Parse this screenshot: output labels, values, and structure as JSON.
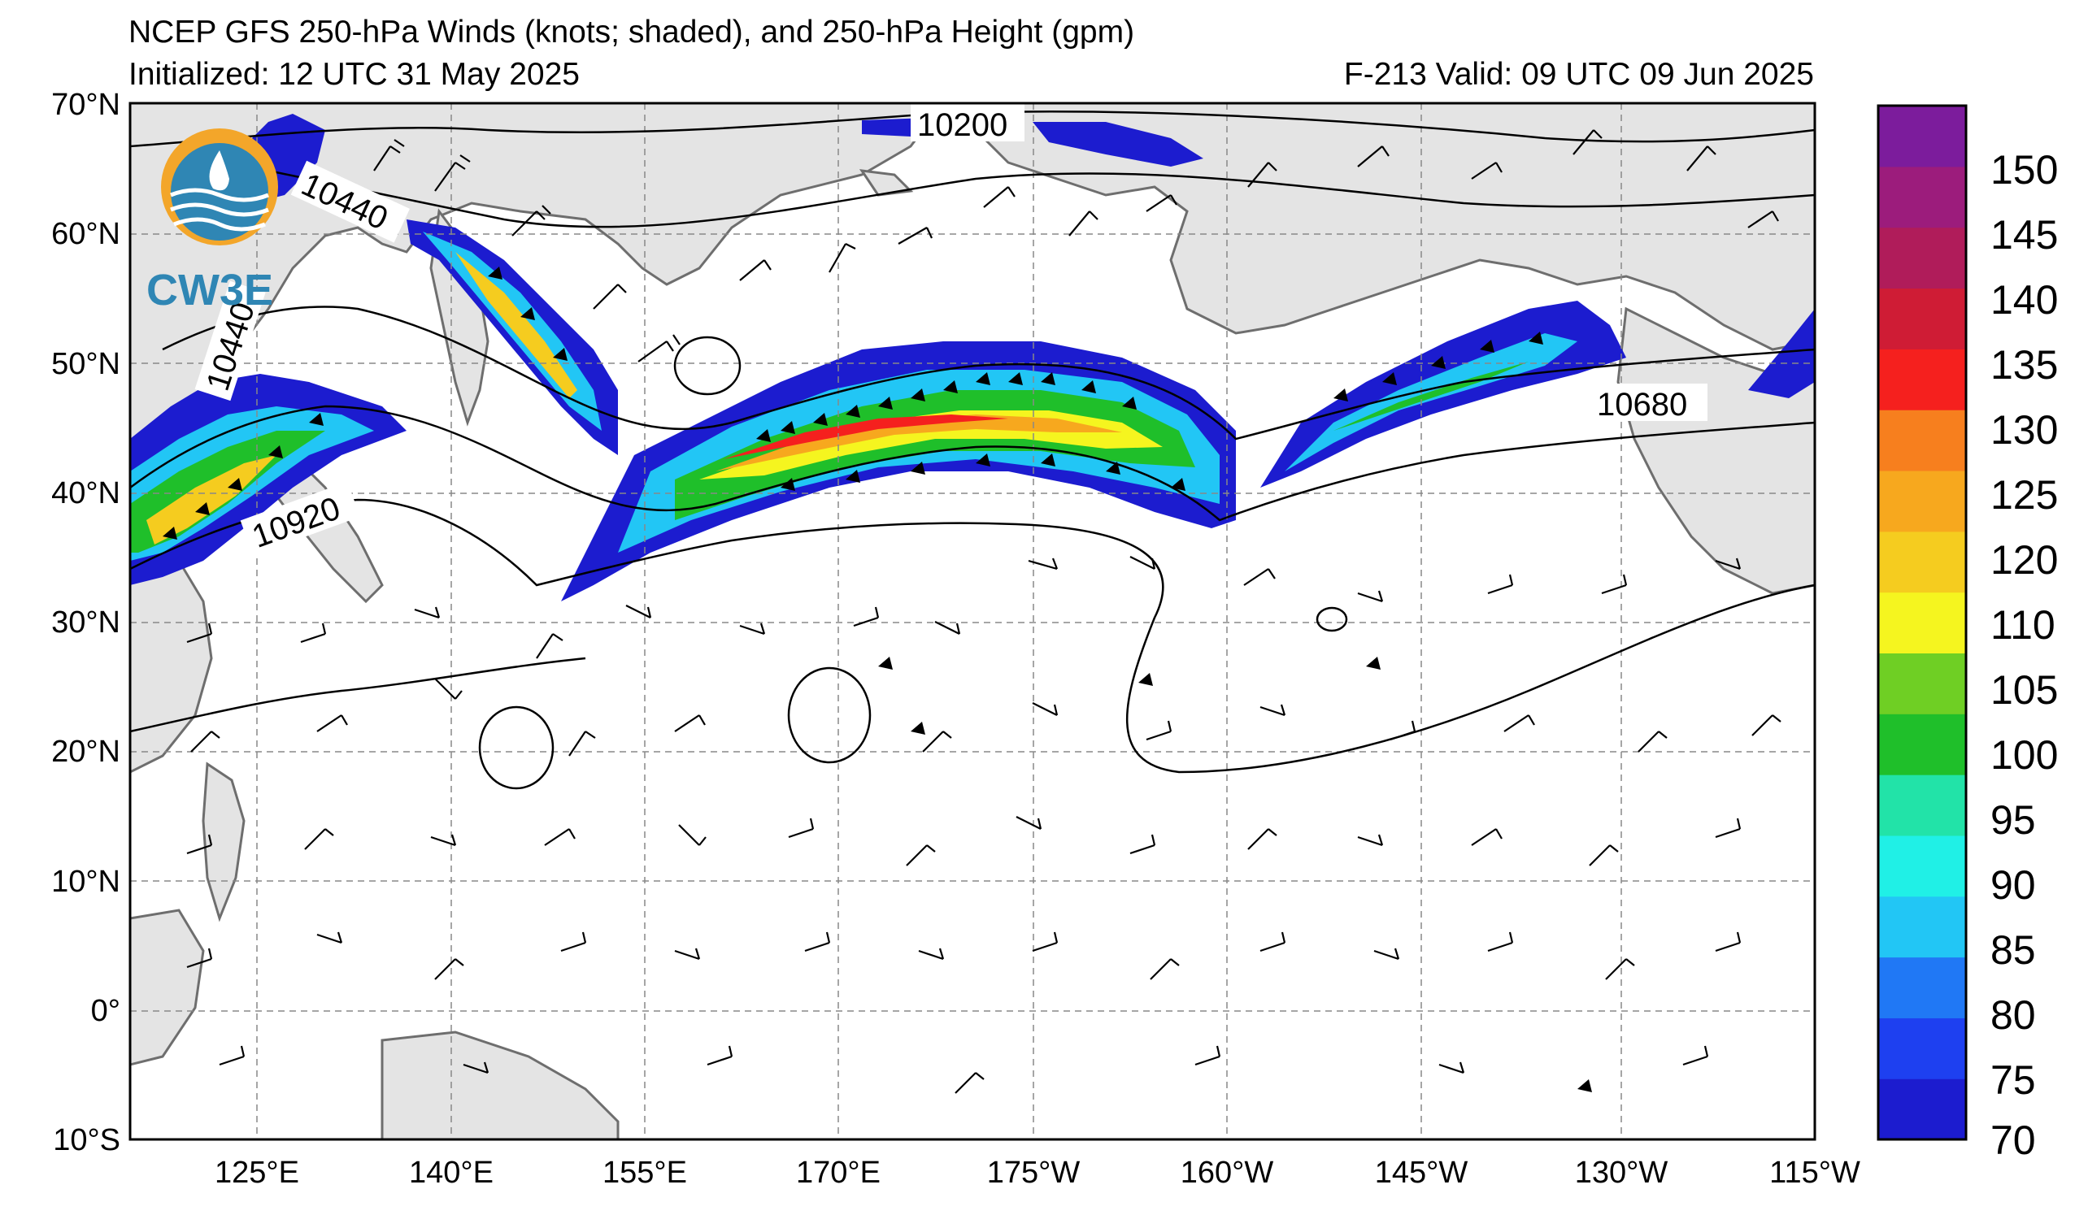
{
  "header": {
    "title": "NCEP GFS 250-hPa Winds (knots; shaded), and 250-hPa Height (gpm)",
    "initialized": "Initialized: 12 UTC 31 May 2025",
    "valid": "F-213  Valid: 09 UTC 09 Jun 2025"
  },
  "logo": {
    "text": "CW3E"
  },
  "axes": {
    "lat_labels": [
      "70°N",
      "60°N",
      "50°N",
      "40°N",
      "30°N",
      "20°N",
      "10°N",
      "0°",
      "10°S"
    ],
    "lon_labels": [
      "125°E",
      "140°E",
      "155°E",
      "170°E",
      "175°W",
      "160°W",
      "145°W",
      "130°W",
      "115°W"
    ]
  },
  "contour_labels": [
    "10200",
    "10440",
    "10440",
    "10920",
    "10680"
  ],
  "colorbar": {
    "ticks": [
      "150",
      "145",
      "140",
      "135",
      "130",
      "125",
      "120",
      "110",
      "105",
      "100",
      "95",
      "90",
      "85",
      "80",
      "75",
      "70"
    ],
    "colors": [
      "#1c1ccf",
      "#1e40f0",
      "#2078f5",
      "#22c6f5",
      "#20f0e6",
      "#22e3a8",
      "#1fbf2a",
      "#6fcf24",
      "#f5f51f",
      "#f5cc1f",
      "#f7a81e",
      "#f77f1e",
      "#f5201e",
      "#cf1c35",
      "#b01c5a",
      "#9c1c7c",
      "#7c1c9c"
    ]
  },
  "colors": {
    "land": "#e4e4e4",
    "coast": "#6e6e6e",
    "grid": "#888888",
    "contour": "#000000"
  }
}
